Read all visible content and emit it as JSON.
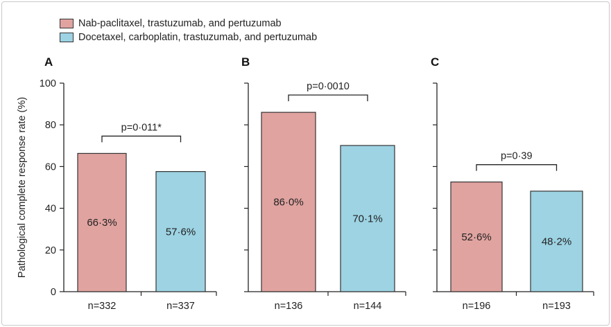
{
  "legend": [
    {
      "label": "Nab-paclitaxel, trastuzumab, and pertuzumab",
      "color": "#e0a3a0"
    },
    {
      "label": "Docetaxel, carboplatin, trastuzumab, and pertuzumab",
      "color": "#9dd3e3"
    }
  ],
  "chart_data": {
    "type": "bar",
    "ylabel": "Pathological complete response rate (%)",
    "ylim": [
      0,
      100
    ],
    "yticks": [
      0,
      20,
      40,
      60,
      80,
      100
    ],
    "series_names": [
      "Nab-paclitaxel, trastuzumab, and pertuzumab",
      "Docetaxel, carboplatin, trastuzumab, and pertuzumab"
    ],
    "series_colors": [
      "#e0a3a0",
      "#9dd3e3"
    ],
    "panels": [
      {
        "label": "A",
        "values": [
          66.3,
          57.6
        ],
        "value_labels": [
          "66·3%",
          "57·6%"
        ],
        "n_labels": [
          "n=332",
          "n=337"
        ],
        "p_label": "p=0·011*"
      },
      {
        "label": "B",
        "values": [
          86.0,
          70.1
        ],
        "value_labels": [
          "86·0%",
          "70·1%"
        ],
        "n_labels": [
          "n=136",
          "n=144"
        ],
        "p_label": "p=0·0010"
      },
      {
        "label": "C",
        "values": [
          52.6,
          48.2
        ],
        "value_labels": [
          "52·6%",
          "48·2%"
        ],
        "n_labels": [
          "n=196",
          "n=193"
        ],
        "p_label": "p=0·39"
      }
    ]
  }
}
